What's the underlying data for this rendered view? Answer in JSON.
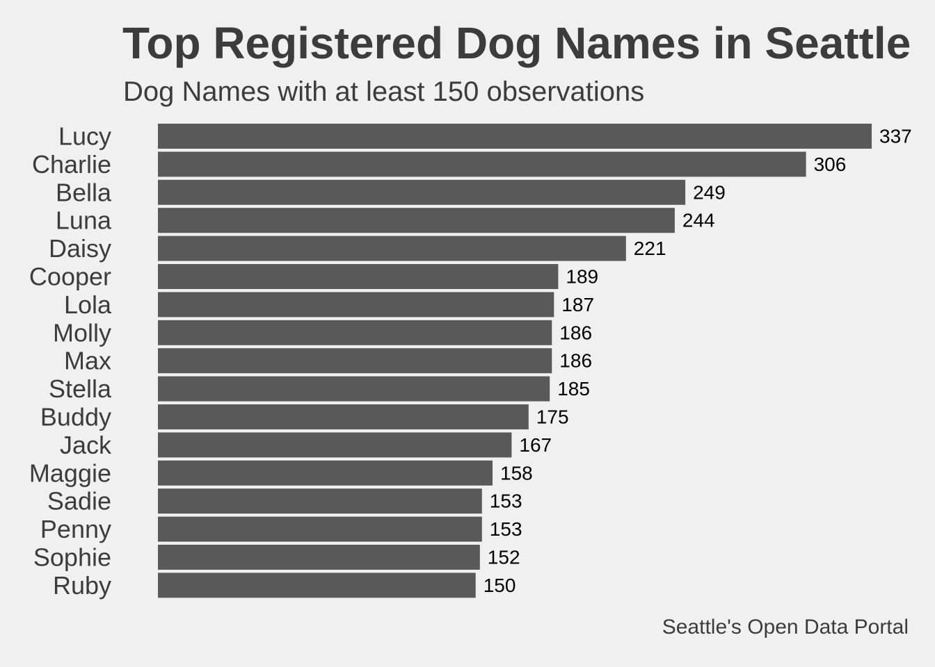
{
  "chart_data": {
    "type": "bar",
    "orientation": "horizontal",
    "title": "Top Registered Dog Names in Seattle",
    "subtitle": "Dog Names with at least 150 observations",
    "caption": "Seattle's Open Data Portal",
    "categories": [
      "Lucy",
      "Charlie",
      "Bella",
      "Luna",
      "Daisy",
      "Cooper",
      "Lola",
      "Molly",
      "Max",
      "Stella",
      "Buddy",
      "Jack",
      "Maggie",
      "Sadie",
      "Penny",
      "Sophie",
      "Ruby"
    ],
    "values": [
      337,
      306,
      249,
      244,
      221,
      189,
      187,
      186,
      186,
      185,
      175,
      167,
      158,
      153,
      153,
      152,
      150
    ],
    "xlim": [
      0,
      337
    ],
    "grid": false,
    "legend": "none",
    "data_labels": true
  },
  "colors": {
    "background": "#f0f0f0",
    "bar": "#595959",
    "title_text": "#3c3c3c",
    "value_text": "#000000"
  }
}
